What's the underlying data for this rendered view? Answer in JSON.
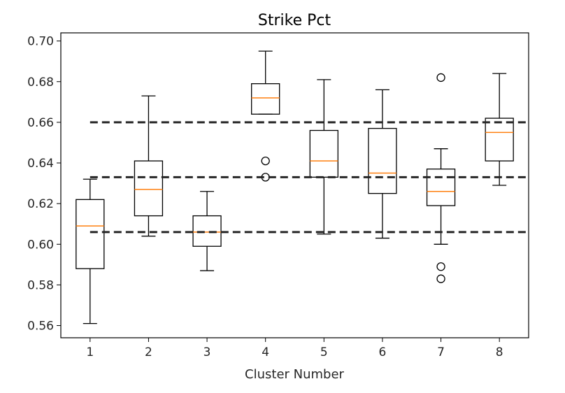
{
  "chart_data": {
    "type": "boxplot",
    "title": "Strike Pct",
    "xlabel": "Cluster Number",
    "ylabel": "",
    "ylim": [
      0.554,
      0.704
    ],
    "xlim": [
      0.5,
      8.5
    ],
    "yticks": [
      0.56,
      0.58,
      0.6,
      0.62,
      0.64,
      0.66,
      0.68,
      0.7
    ],
    "ytick_labels": [
      "0.56",
      "0.58",
      "0.60",
      "0.62",
      "0.64",
      "0.66",
      "0.68",
      "0.70"
    ],
    "categories": [
      "1",
      "2",
      "3",
      "4",
      "5",
      "6",
      "7",
      "8"
    ],
    "boxes": [
      {
        "whislo": 0.561,
        "q1": 0.588,
        "med": 0.609,
        "q3": 0.622,
        "whishi": 0.632,
        "fliers": []
      },
      {
        "whislo": 0.604,
        "q1": 0.614,
        "med": 0.627,
        "q3": 0.641,
        "whishi": 0.673,
        "fliers": []
      },
      {
        "whislo": 0.587,
        "q1": 0.599,
        "med": 0.606,
        "q3": 0.614,
        "whishi": 0.626,
        "fliers": []
      },
      {
        "whislo": 0.664,
        "q1": 0.664,
        "med": 0.672,
        "q3": 0.679,
        "whishi": 0.695,
        "fliers": [
          0.641,
          0.633
        ]
      },
      {
        "whislo": 0.605,
        "q1": 0.633,
        "med": 0.641,
        "q3": 0.656,
        "whishi": 0.681,
        "fliers": []
      },
      {
        "whislo": 0.603,
        "q1": 0.625,
        "med": 0.635,
        "q3": 0.657,
        "whishi": 0.676,
        "fliers": []
      },
      {
        "whislo": 0.6,
        "q1": 0.619,
        "med": 0.626,
        "q3": 0.637,
        "whishi": 0.647,
        "fliers": [
          0.682,
          0.589,
          0.583
        ]
      },
      {
        "whislo": 0.629,
        "q1": 0.641,
        "med": 0.655,
        "q3": 0.662,
        "whishi": 0.684,
        "fliers": []
      }
    ],
    "reference_lines": [
      0.66,
      0.633,
      0.606
    ],
    "colors": {
      "box": "#000000",
      "median": "#ff7f0e",
      "reference": "#262626"
    },
    "grid": false
  }
}
